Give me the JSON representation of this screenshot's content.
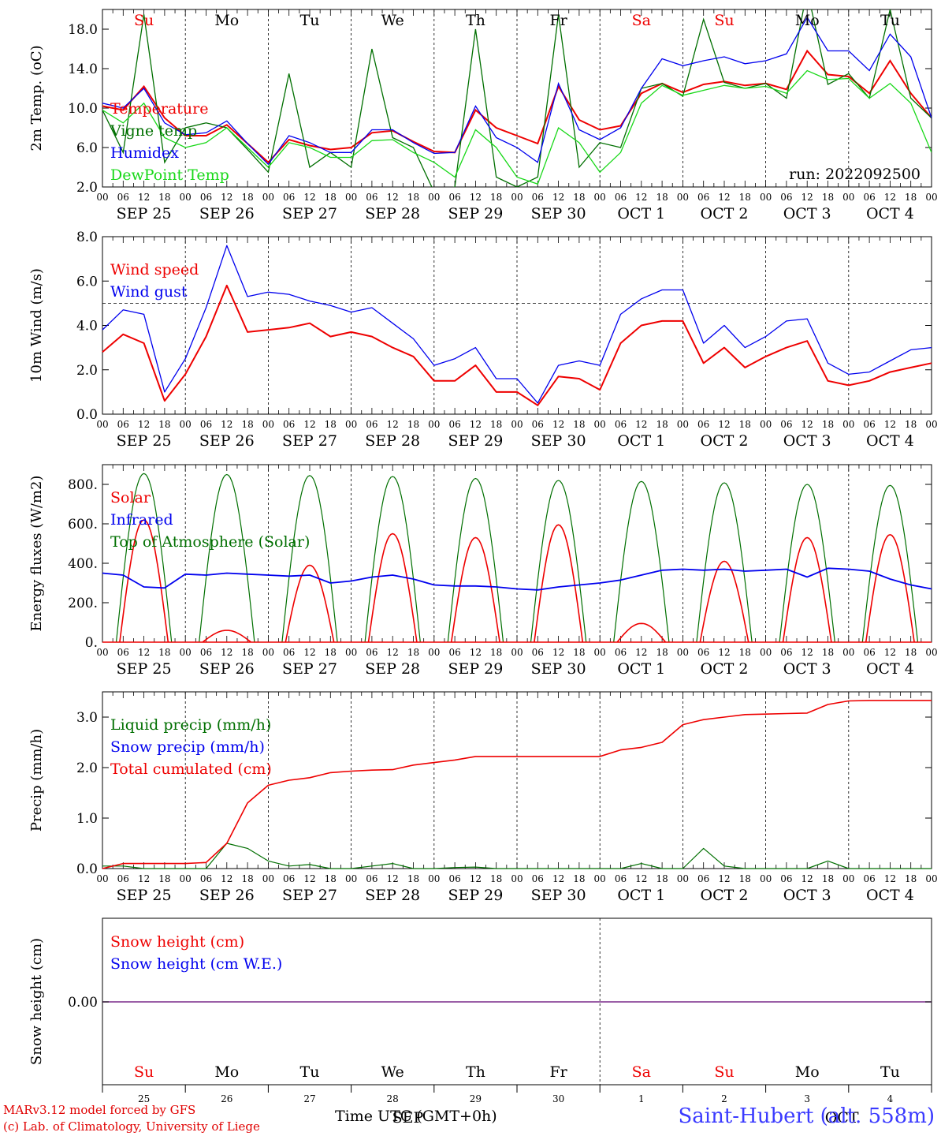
{
  "days": [
    "Su",
    "Mo",
    "Tu",
    "We",
    "Th",
    "Fr",
    "Sa",
    "Su",
    "Mo",
    "Tu"
  ],
  "weekend_days": [
    0,
    6,
    7
  ],
  "dates": [
    "SEP 25",
    "SEP 26",
    "SEP 27",
    "SEP 28",
    "SEP 29",
    "SEP 30",
    "OCT  1",
    "OCT  2",
    "OCT  3",
    "OCT  4"
  ],
  "hour_ticks": [
    "00",
    "06",
    "12",
    "18"
  ],
  "hour_end": "00",
  "bottom_day_numbers": [
    "25",
    "26",
    "27",
    "28",
    "29",
    "30",
    "1",
    "2",
    "3",
    "4"
  ],
  "bottom_month_left": "SEP",
  "bottom_month_right": "OCT",
  "run_label": "run: 2022092500",
  "x_title": "Time UTC (GMT+0h)",
  "credit_line1": "MARv3.12 model forced by GFS",
  "credit_line2": "(c) Lab. of Climatology, University of Liege",
  "station": "Saint-Hubert (alt. 558m)",
  "colors": {
    "red": "#ee0000",
    "green": "#006f00",
    "blue": "#0000ee",
    "lightgreen": "#18d818",
    "purple": "#7a2a8a"
  },
  "chart_data": [
    {
      "type": "line",
      "ylabel": "2m Temp. (oC)",
      "ylim": [
        2,
        20
      ],
      "yticks": [
        "2.0",
        "6.0",
        "10.0",
        "14.0",
        "18.0"
      ],
      "ytick_values": [
        2,
        6,
        10,
        14,
        18
      ],
      "x_hours": [
        0,
        6,
        12,
        18,
        24,
        30,
        36,
        42,
        48,
        54,
        60,
        66,
        72,
        78,
        84,
        90,
        96,
        102,
        108,
        114,
        120,
        126,
        132,
        138,
        144,
        150,
        156,
        162,
        168,
        174,
        180,
        186,
        192,
        198,
        204,
        210,
        216,
        222,
        228,
        234,
        240
      ],
      "series": [
        {
          "name": "Temperature",
          "color": "red",
          "values": [
            10.2,
            9.8,
            12.2,
            9.0,
            7.2,
            7.2,
            8.3,
            6.4,
            4.5,
            6.8,
            6.2,
            5.8,
            6.0,
            7.5,
            7.7,
            6.6,
            5.6,
            5.5,
            9.8,
            8.0,
            7.2,
            6.4,
            12.2,
            8.8,
            7.8,
            8.2,
            11.5,
            12.5,
            11.6,
            12.4,
            12.7,
            12.3,
            12.5,
            11.9,
            15.8,
            13.4,
            13.2,
            11.5,
            14.8,
            11.5,
            9.0
          ]
        },
        {
          "name": "Vigne temp",
          "color": "green",
          "values": [
            9.8,
            5.5,
            19.5,
            4.5,
            8.0,
            8.5,
            8.0,
            5.8,
            3.5,
            13.5,
            4.0,
            5.5,
            4.0,
            16.0,
            7.0,
            6.0,
            1.5,
            2.0,
            18.0,
            3.0,
            2.0,
            3.0,
            19.5,
            4.0,
            6.5,
            6.0,
            12.0,
            12.5,
            11.2,
            19.0,
            12.6,
            12.0,
            12.5,
            11.0,
            22.0,
            12.4,
            13.5,
            11.0,
            20.0,
            11.0,
            9.0
          ]
        },
        {
          "name": "Humidex",
          "color": "blue",
          "values": [
            10.5,
            10.0,
            12.0,
            8.5,
            7.3,
            7.5,
            8.7,
            6.4,
            4.3,
            7.2,
            6.5,
            5.5,
            5.5,
            7.8,
            7.8,
            6.5,
            5.4,
            5.5,
            10.2,
            7.0,
            6.0,
            4.5,
            12.5,
            7.8,
            6.8,
            8.0,
            12.0,
            15.0,
            14.3,
            14.8,
            15.2,
            14.5,
            14.8,
            15.5,
            19.2,
            15.8,
            15.8,
            13.8,
            17.5,
            15.2,
            9.0
          ]
        },
        {
          "name": "DewPoint Temp",
          "color": "lightgreen",
          "values": [
            9.8,
            8.5,
            10.5,
            7.0,
            6.0,
            6.5,
            8.0,
            6.0,
            4.0,
            6.5,
            6.0,
            5.0,
            5.0,
            6.7,
            6.8,
            5.5,
            4.5,
            3.0,
            7.8,
            6.0,
            3.0,
            2.3,
            8.0,
            6.5,
            3.5,
            5.5,
            10.5,
            12.3,
            11.3,
            11.8,
            12.3,
            12.0,
            12.2,
            11.5,
            13.8,
            12.9,
            13.0,
            11.0,
            12.5,
            10.5,
            5.5
          ]
        }
      ]
    },
    {
      "type": "line",
      "ylabel": "10m Wind (m/s)",
      "ylim": [
        0,
        8
      ],
      "yticks": [
        "0.0",
        "2.0",
        "4.0",
        "6.0",
        "8.0"
      ],
      "ytick_values": [
        0,
        2,
        4,
        6,
        8
      ],
      "reference_line": 5.0,
      "x_hours": [
        0,
        6,
        12,
        18,
        24,
        30,
        36,
        42,
        48,
        54,
        60,
        66,
        72,
        78,
        84,
        90,
        96,
        102,
        108,
        114,
        120,
        126,
        132,
        138,
        144,
        150,
        156,
        162,
        168,
        174,
        180,
        186,
        192,
        198,
        204,
        210,
        216,
        222,
        228,
        234,
        240
      ],
      "series": [
        {
          "name": "Wind speed",
          "color": "red",
          "values": [
            2.8,
            3.6,
            3.2,
            0.6,
            1.8,
            3.5,
            5.8,
            3.7,
            3.8,
            3.9,
            4.1,
            3.5,
            3.7,
            3.5,
            3.0,
            2.6,
            1.5,
            1.5,
            2.2,
            1.0,
            1.0,
            0.4,
            1.7,
            1.6,
            1.1,
            3.2,
            4.0,
            4.2,
            4.2,
            2.3,
            3.0,
            2.1,
            2.6,
            3.0,
            3.3,
            1.5,
            1.3,
            1.5,
            1.9,
            2.1,
            2.3
          ]
        },
        {
          "name": "Wind gust",
          "color": "blue",
          "values": [
            3.8,
            4.7,
            4.5,
            1.0,
            2.5,
            4.8,
            7.6,
            5.3,
            5.5,
            5.4,
            5.1,
            4.9,
            4.6,
            4.8,
            4.1,
            3.4,
            2.2,
            2.5,
            3.0,
            1.6,
            1.6,
            0.5,
            2.2,
            2.4,
            2.2,
            4.5,
            5.2,
            5.6,
            5.6,
            3.2,
            4.0,
            3.0,
            3.5,
            4.2,
            4.3,
            2.3,
            1.8,
            1.9,
            2.4,
            2.9,
            3.0
          ]
        }
      ]
    },
    {
      "type": "line",
      "ylabel": "Energy fluxes (W/m2)",
      "ylim": [
        0,
        900
      ],
      "yticks": [
        "0.",
        "200.",
        "400.",
        "600.",
        "800."
      ],
      "ytick_values": [
        0,
        200,
        400,
        600,
        800
      ],
      "toa_peaks": [
        855,
        850,
        845,
        840,
        830,
        820,
        815,
        808,
        800,
        795
      ],
      "solar_peaks": [
        620,
        60,
        390,
        550,
        530,
        595,
        95,
        410,
        530,
        545
      ],
      "series": [
        {
          "name": "Solar",
          "color": "red"
        },
        {
          "name": "Infrared",
          "color": "blue",
          "x_hours": [
            0,
            6,
            12,
            18,
            24,
            30,
            36,
            42,
            48,
            54,
            60,
            66,
            72,
            78,
            84,
            90,
            96,
            102,
            108,
            114,
            120,
            126,
            132,
            138,
            144,
            150,
            156,
            162,
            168,
            174,
            180,
            186,
            192,
            198,
            204,
            210,
            216,
            222,
            228,
            234,
            240
          ],
          "values": [
            350,
            340,
            280,
            275,
            345,
            340,
            350,
            345,
            340,
            335,
            340,
            300,
            310,
            330,
            340,
            320,
            290,
            285,
            285,
            280,
            270,
            265,
            280,
            290,
            300,
            315,
            340,
            365,
            370,
            365,
            370,
            360,
            365,
            370,
            330,
            375,
            370,
            360,
            320,
            290,
            270
          ]
        },
        {
          "name": "Top of Atmosphere (Solar)",
          "color": "green"
        }
      ]
    },
    {
      "type": "line",
      "ylabel": "Precip (mm/h)",
      "ylim": [
        0,
        3.5
      ],
      "yticks": [
        "0.0",
        "1.0",
        "2.0",
        "3.0"
      ],
      "ytick_values": [
        0,
        1,
        2,
        3
      ],
      "x_hours": [
        0,
        6,
        12,
        18,
        24,
        30,
        36,
        42,
        48,
        54,
        60,
        66,
        72,
        78,
        84,
        90,
        96,
        102,
        108,
        114,
        120,
        126,
        132,
        138,
        144,
        150,
        156,
        162,
        168,
        174,
        180,
        186,
        192,
        198,
        204,
        210,
        216,
        222,
        228,
        234,
        240
      ],
      "series": [
        {
          "name": "Liquid precip (mm/h)",
          "color": "green",
          "values": [
            0.05,
            0.05,
            0,
            0,
            0,
            0,
            0.5,
            0.4,
            0.15,
            0.05,
            0.08,
            0,
            0,
            0.05,
            0.1,
            0,
            0,
            0.02,
            0.03,
            0,
            0,
            0,
            0,
            0,
            0,
            0,
            0.1,
            0,
            0,
            0.4,
            0.05,
            0,
            0,
            0,
            0,
            0.15,
            0,
            0,
            0,
            0,
            0
          ]
        },
        {
          "name": "Snow precip (mm/h)",
          "color": "blue",
          "values": []
        },
        {
          "name": "Total cumulated (cm)",
          "color": "red",
          "values": [
            0.0,
            0.1,
            0.1,
            0.1,
            0.1,
            0.12,
            0.5,
            1.3,
            1.65,
            1.75,
            1.8,
            1.9,
            1.93,
            1.95,
            1.96,
            2.05,
            2.1,
            2.15,
            2.22,
            2.22,
            2.22,
            2.22,
            2.22,
            2.22,
            2.22,
            2.35,
            2.4,
            2.5,
            2.85,
            2.95,
            3.0,
            3.05,
            3.06,
            3.07,
            3.08,
            3.25,
            3.32,
            3.33,
            3.33,
            3.33,
            3.33
          ]
        }
      ]
    },
    {
      "type": "line",
      "ylabel": "Snow height (cm)",
      "yticks": [
        "0.00"
      ],
      "ytick_values": [
        0
      ],
      "series": [
        {
          "name": "Snow height (cm)",
          "color": "red",
          "values": [
            0,
            0
          ]
        },
        {
          "name": "Snow height (cm W.E.)",
          "color": "blue",
          "values": [
            0,
            0
          ]
        }
      ]
    }
  ]
}
